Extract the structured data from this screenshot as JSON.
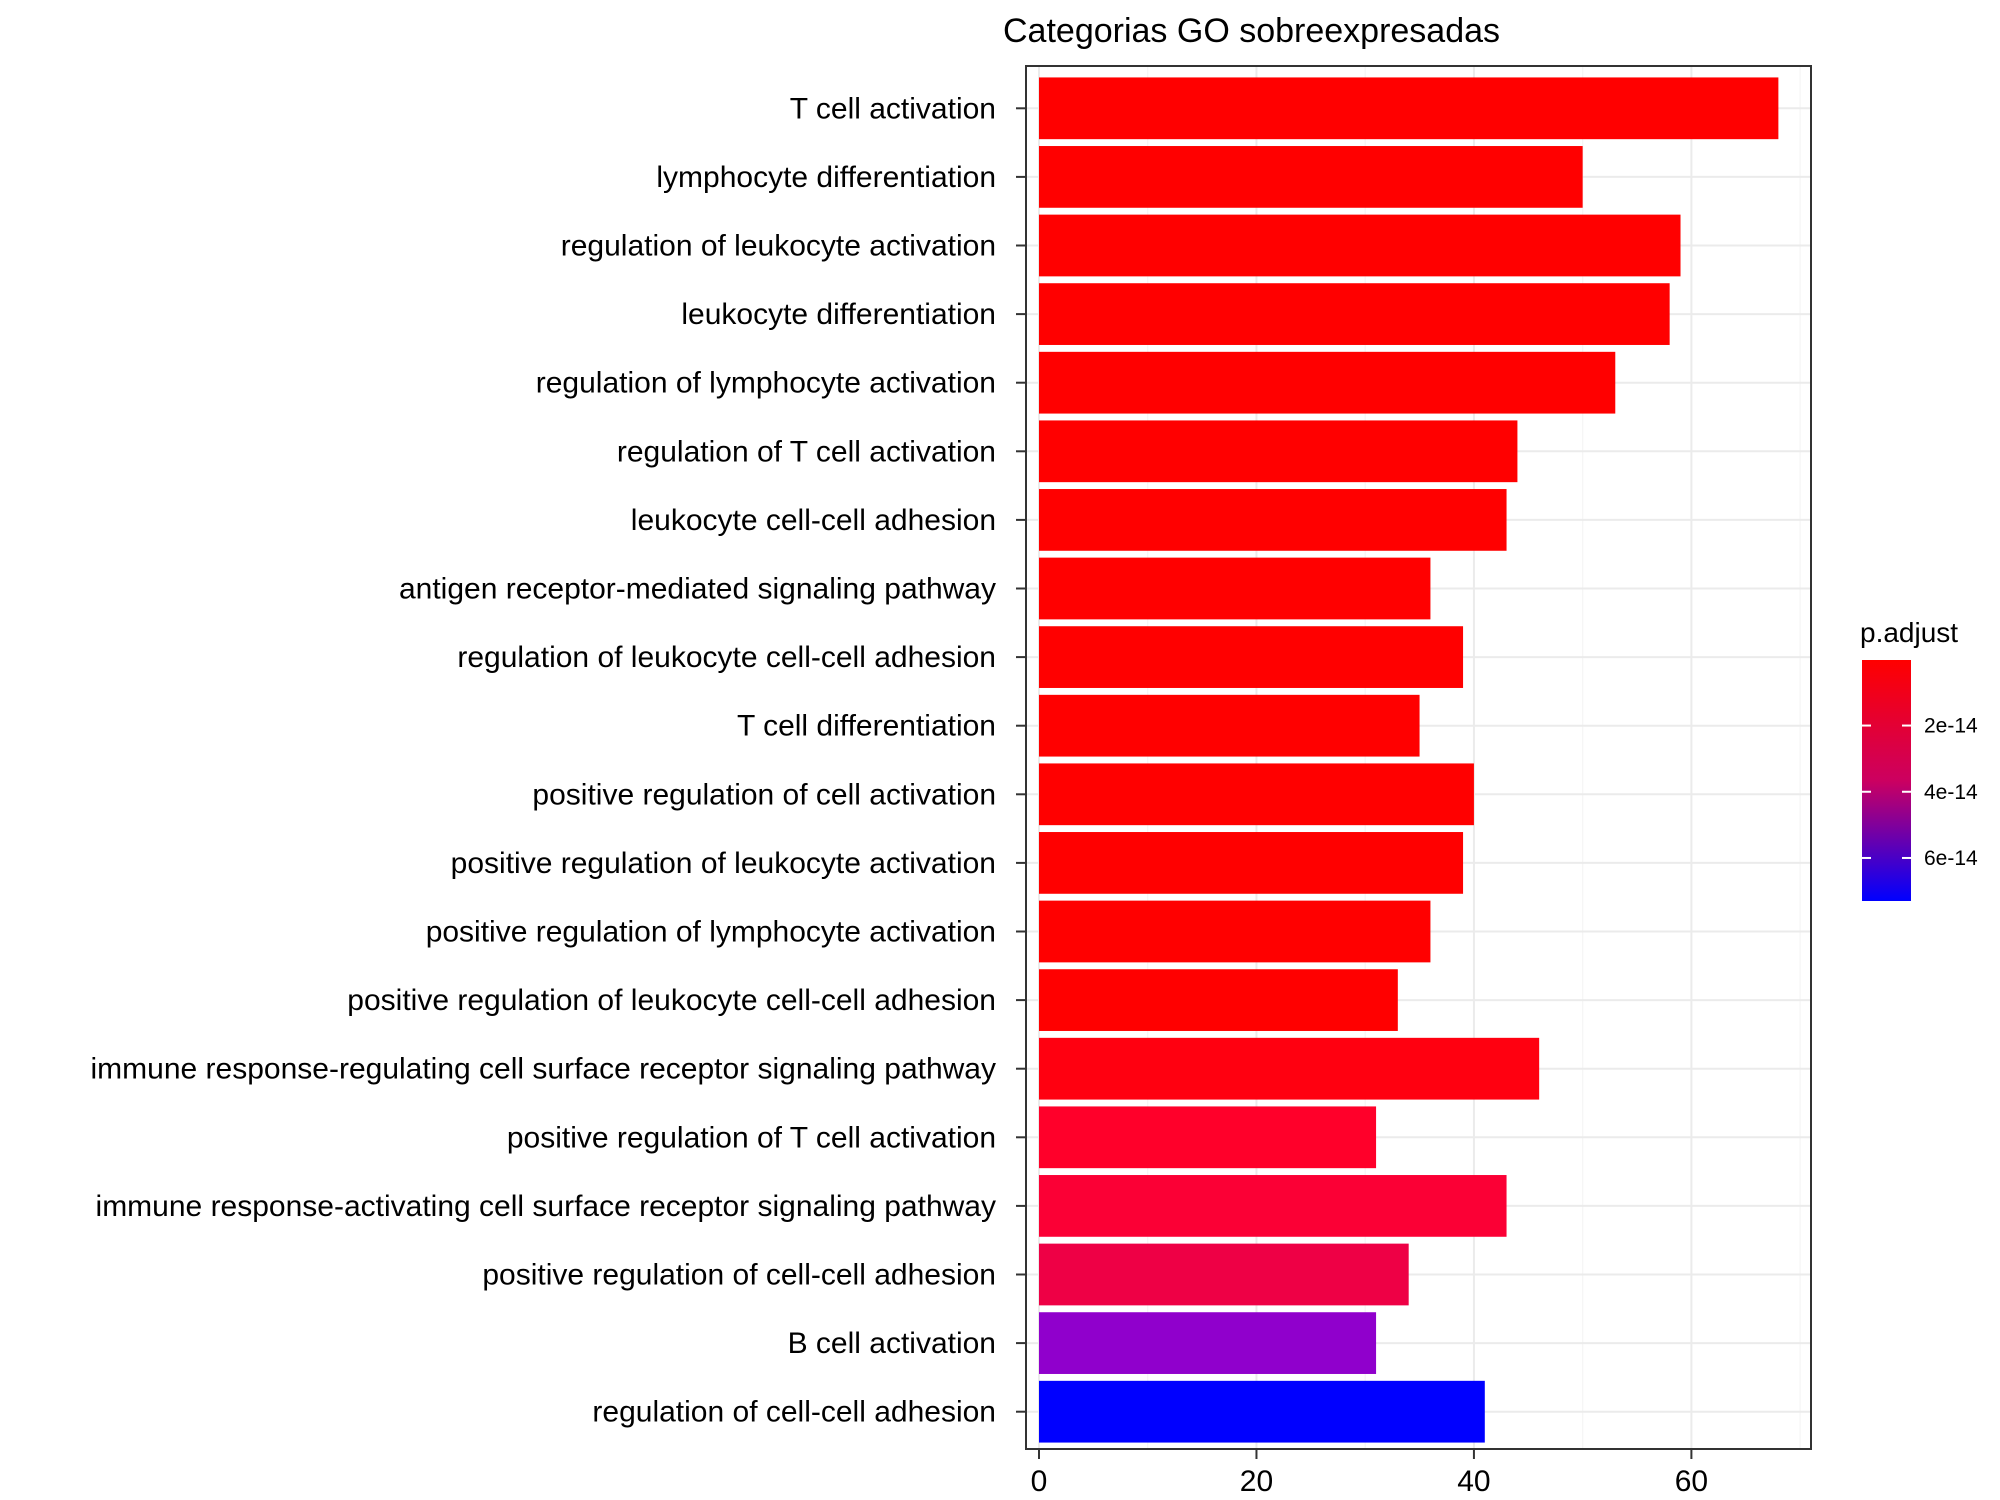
{
  "chart_data": {
    "type": "bar",
    "orientation": "horizontal",
    "title": "Categorias GO sobreexpresadas",
    "xlabel": "",
    "ylabel": "",
    "xlim": [
      0,
      71
    ],
    "x_ticks": [
      "0",
      "20",
      "40",
      "60"
    ],
    "x_tick_values": [
      0,
      20,
      40,
      60
    ],
    "grid": true,
    "legend": {
      "title": "p.adjust",
      "placement": "right",
      "type": "colorbar",
      "range": [
        2e-16,
        7.3e-14
      ],
      "tick_labels": [
        "2e-14",
        "4e-14",
        "6e-14"
      ],
      "tick_values": [
        2e-14,
        4e-14,
        6e-14
      ],
      "low_color": "#ff0000",
      "high_color": "#0000ff"
    },
    "categories": [
      "T cell activation",
      "lymphocyte differentiation",
      "regulation of leukocyte activation",
      "leukocyte differentiation",
      "regulation of lymphocyte activation",
      "regulation of T cell activation",
      "leukocyte cell-cell adhesion",
      "antigen receptor-mediated signaling pathway",
      "regulation of leukocyte cell-cell adhesion",
      "T cell differentiation",
      "positive regulation of cell activation",
      "positive regulation of leukocyte activation",
      "positive regulation of lymphocyte activation",
      "positive regulation of leukocyte cell-cell adhesion",
      "immune response-regulating cell surface receptor signaling pathway",
      "positive regulation of T cell activation",
      "immune response-activating cell surface receptor signaling pathway",
      "positive regulation of cell-cell adhesion",
      "B cell activation",
      "regulation of cell-cell adhesion"
    ],
    "values": [
      68,
      50,
      59,
      58,
      53,
      44,
      43,
      36,
      39,
      35,
      40,
      39,
      36,
      33,
      46,
      31,
      43,
      34,
      31,
      41
    ],
    "p_adjust": [
      5e-31,
      3e-25,
      4e-24,
      2e-23,
      3e-22,
      1e-19,
      2e-19,
      1e-18,
      2e-18,
      4e-18,
      6e-18,
      1e-17,
      3e-17,
      8e-17,
      3e-16,
      3.8e-15,
      4.5e-15,
      1.55e-14,
      5.3e-14,
      7.3e-14
    ],
    "colors": [
      "#ff0000",
      "#ff0000",
      "#ff0000",
      "#ff0000",
      "#ff0000",
      "#ff0000",
      "#ff0000",
      "#ff0000",
      "#ff0000",
      "#ff0000",
      "#ff0000",
      "#ff0000",
      "#ff0000",
      "#ff0000",
      "#ff0010",
      "#ff002a",
      "#fb0035",
      "#ee0045",
      "#9000cc",
      "#0000ff"
    ]
  }
}
